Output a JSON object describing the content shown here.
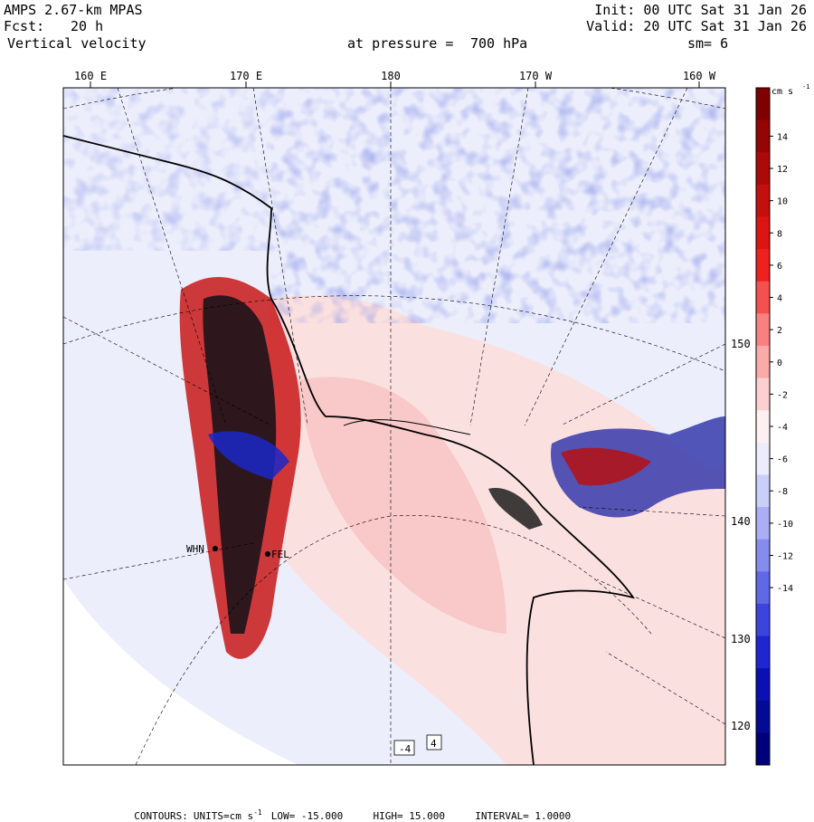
{
  "header": {
    "model": "AMPS 2.67-km MPAS",
    "init": "Init: 00 UTC Sat 31 Jan 26",
    "fcst_label": "Fcst:",
    "fcst_value": "20 h",
    "valid": "Valid: 20 UTC Sat 31 Jan 26",
    "field": "Vertical velocity",
    "level_label": "at pressure =",
    "level_value": "700 hPa",
    "smooth": "sm= 6"
  },
  "top_longitude_labels": [
    "160 E",
    "170 E",
    "180",
    "170 W",
    "160 W"
  ],
  "right_longitude_labels": [
    "150 W",
    "140 W",
    "130 W",
    "120 W"
  ],
  "station_labels": [
    "WHN",
    "FEL"
  ],
  "map_value_labels": [
    "-4",
    "4"
  ],
  "colorbar": {
    "units": "cm s",
    "units_exp": "-1",
    "tick_labels": [
      "14",
      "12",
      "10",
      "8",
      "6",
      "4",
      "2",
      "0",
      "-2",
      "-4",
      "-6",
      "-8",
      "-10",
      "-12",
      "-14"
    ],
    "colors": [
      "#7f0000",
      "#960505",
      "#ac0a0a",
      "#c40f0f",
      "#dc1414",
      "#ef2020",
      "#f55050",
      "#f98080",
      "#fbaaaa",
      "#fdd0d0",
      "#fdf0f0",
      "#ececfd",
      "#cccefa",
      "#aaaef5",
      "#868cee",
      "#6068e6",
      "#3c44de",
      "#1e26d2",
      "#0a10b4",
      "#040a96",
      "#00007a"
    ]
  },
  "footer": {
    "contours": "CONTOURS:",
    "units": "UNITS=cm s",
    "units_exp": "-1",
    "low": "LOW= -15.000",
    "high": "HIGH= 15.000",
    "interval": "INTERVAL= 1.0000"
  }
}
